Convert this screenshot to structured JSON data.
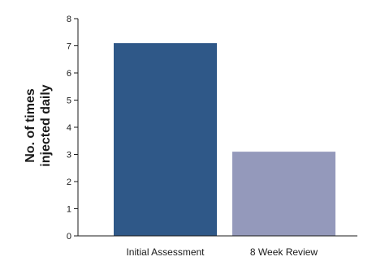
{
  "chart_data": {
    "type": "bar",
    "categories": [
      "Initial Assessment",
      "8 Week Review"
    ],
    "values": [
      7.1,
      3.1
    ],
    "title": "",
    "xlabel": "",
    "ylabel": [
      "No. of times",
      "injected daily"
    ],
    "ylim": [
      0,
      8
    ],
    "yticks": [
      "0",
      "1",
      "2",
      "3",
      "4",
      "5",
      "6",
      "7",
      "8"
    ],
    "grid": false,
    "legend": "none",
    "colors": [
      "#2f5888",
      "#9499bb"
    ]
  }
}
